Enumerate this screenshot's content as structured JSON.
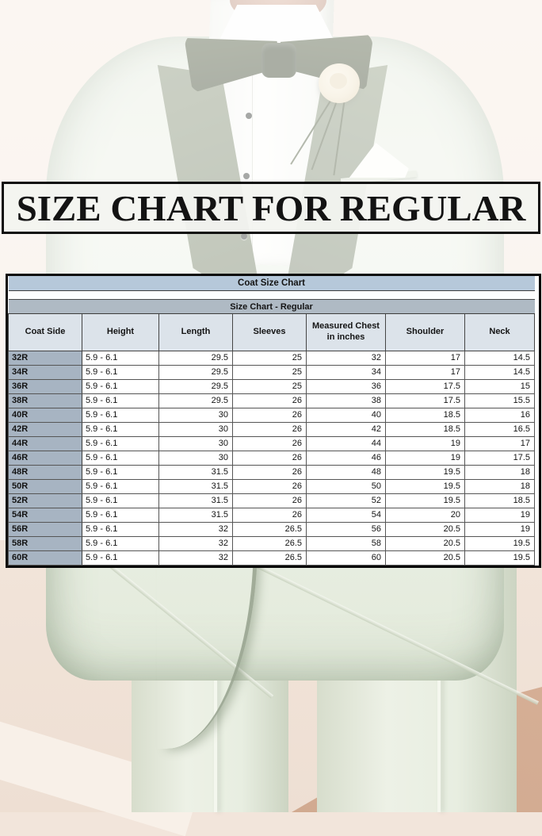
{
  "banner": {
    "text": "SIZE CHART FOR REGULAR"
  },
  "chart_data": {
    "type": "table",
    "title": "Coat Size Chart",
    "subtitle": "Size Chart - Regular",
    "columns": [
      "Coat Side",
      "Height",
      "Length",
      "Sleeves",
      "Measured Chest in inches",
      "Shoulder",
      "Neck"
    ],
    "rows": [
      [
        "32R",
        "5.9 - 6.1",
        "29.5",
        "25",
        "32",
        "17",
        "14.5"
      ],
      [
        "34R",
        "5.9 - 6.1",
        "29.5",
        "25",
        "34",
        "17",
        "14.5"
      ],
      [
        "36R",
        "5.9 - 6.1",
        "29.5",
        "25",
        "36",
        "17.5",
        "15"
      ],
      [
        "38R",
        "5.9 - 6.1",
        "29.5",
        "26",
        "38",
        "17.5",
        "15.5"
      ],
      [
        "40R",
        "5.9 - 6.1",
        "30",
        "26",
        "40",
        "18.5",
        "16"
      ],
      [
        "42R",
        "5.9 - 6.1",
        "30",
        "26",
        "42",
        "18.5",
        "16.5"
      ],
      [
        "44R",
        "5.9 - 6.1",
        "30",
        "26",
        "44",
        "19",
        "17"
      ],
      [
        "46R",
        "5.9 - 6.1",
        "30",
        "26",
        "46",
        "19",
        "17.5"
      ],
      [
        "48R",
        "5.9 - 6.1",
        "31.5",
        "26",
        "48",
        "19.5",
        "18"
      ],
      [
        "50R",
        "5.9 - 6.1",
        "31.5",
        "26",
        "50",
        "19.5",
        "18"
      ],
      [
        "52R",
        "5.9 - 6.1",
        "31.5",
        "26",
        "52",
        "19.5",
        "18.5"
      ],
      [
        "54R",
        "5.9 - 6.1",
        "31.5",
        "26",
        "54",
        "20",
        "19"
      ],
      [
        "56R",
        "5.9 - 6.1",
        "32",
        "26.5",
        "56",
        "20.5",
        "19"
      ],
      [
        "58R",
        "5.9 - 6.1",
        "32",
        "26.5",
        "58",
        "20.5",
        "19.5"
      ],
      [
        "60R",
        "5.9 - 6.1",
        "32",
        "26.5",
        "60",
        "20.5",
        "19.5"
      ]
    ]
  },
  "colors": {
    "table_title_bg": "#b6c8da",
    "table_subtitle_bg": "#afbac4",
    "table_header_bg": "#dce3ea",
    "row_header_bg": "#a7b4c2",
    "table_border": "#0a0a0a",
    "banner_border": "#0d0d0d",
    "banner_text": "#131313",
    "suit_mint": "#e9efe3",
    "bow_tie_sage": "#49533b",
    "wall_beige": "#f3e6dc",
    "floor_tan": "#d7b097",
    "fade_overlay": "rgba(255,255,255,0.55)"
  }
}
